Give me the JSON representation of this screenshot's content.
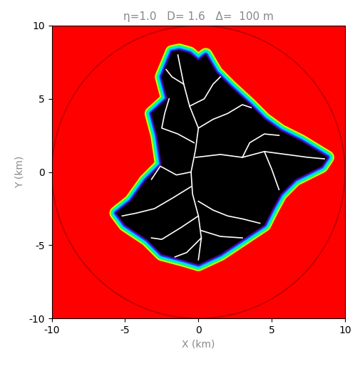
{
  "chart_data": {
    "type": "map",
    "title": "η=1.0   D= 1.6   Δ=  100 m",
    "x_label": "X (km)",
    "y_label": "Y (km)",
    "xlim": [
      -10,
      10
    ],
    "ylim": [
      -10,
      10
    ],
    "xticks": [
      -10,
      -5,
      0,
      5,
      10
    ],
    "yticks": [
      -10,
      -5,
      0,
      5,
      10
    ],
    "background_color": "#ff0000",
    "circle_radius": 10,
    "circle_color": "#b00000",
    "region_color": "#000000",
    "branch_color": "#ffffff",
    "region": [
      [
        -1.3,
        8.3
      ],
      [
        -0.6,
        8.1
      ],
      [
        0.0,
        7.6
      ],
      [
        0.5,
        8.0
      ],
      [
        1.2,
        6.8
      ],
      [
        2.2,
        5.8
      ],
      [
        3.5,
        4.6
      ],
      [
        4.5,
        3.6
      ],
      [
        5.6,
        2.8
      ],
      [
        7.0,
        2.1
      ],
      [
        8.8,
        1.0
      ],
      [
        8.4,
        0.4
      ],
      [
        6.6,
        -0.5
      ],
      [
        5.6,
        -1.5
      ],
      [
        5.0,
        -2.6
      ],
      [
        4.5,
        -3.6
      ],
      [
        3.0,
        -4.6
      ],
      [
        1.5,
        -5.6
      ],
      [
        0.0,
        -6.3
      ],
      [
        -1.0,
        -6.0
      ],
      [
        -2.5,
        -5.6
      ],
      [
        -3.5,
        -4.6
      ],
      [
        -5.0,
        -3.6
      ],
      [
        -5.6,
        -2.8
      ],
      [
        -4.6,
        -2.0
      ],
      [
        -3.6,
        -0.6
      ],
      [
        -2.5,
        0.5
      ],
      [
        -2.8,
        2.5
      ],
      [
        -3.2,
        4.0
      ],
      [
        -2.1,
        5.0
      ],
      [
        -2.5,
        6.5
      ],
      [
        -1.8,
        8.2
      ]
    ],
    "branches": [
      [
        [
          0.0,
          -6.0
        ],
        [
          0.2,
          -4.5
        ],
        [
          0.0,
          -3.0
        ],
        [
          -0.4,
          -1.5
        ],
        [
          -0.5,
          0.0
        ],
        [
          -0.2,
          1.5
        ],
        [
          0.0,
          3.0
        ],
        [
          -0.6,
          4.5
        ],
        [
          -1.0,
          6.0
        ],
        [
          -1.4,
          8.0
        ]
      ],
      [
        [
          -0.2,
          1.0
        ],
        [
          1.5,
          1.2
        ],
        [
          3.0,
          1.0
        ],
        [
          4.5,
          1.4
        ],
        [
          6.0,
          1.2
        ],
        [
          7.5,
          1.0
        ],
        [
          8.6,
          0.9
        ]
      ],
      [
        [
          0.0,
          3.0
        ],
        [
          1.0,
          3.6
        ],
        [
          2.0,
          4.0
        ],
        [
          3.0,
          4.6
        ],
        [
          3.6,
          4.4
        ]
      ],
      [
        [
          -0.5,
          -1.0
        ],
        [
          -1.8,
          -1.8
        ],
        [
          -3.0,
          -2.5
        ],
        [
          -4.2,
          -2.8
        ],
        [
          -5.2,
          -3.0
        ]
      ],
      [
        [
          0.0,
          -2.0
        ],
        [
          1.0,
          -2.6
        ],
        [
          2.0,
          -3.0
        ],
        [
          3.0,
          -3.2
        ],
        [
          4.2,
          -3.5
        ]
      ],
      [
        [
          -0.3,
          2.0
        ],
        [
          -1.4,
          2.6
        ],
        [
          -2.5,
          3.0
        ],
        [
          -2.3,
          4.0
        ],
        [
          -2.0,
          5.0
        ]
      ],
      [
        [
          0.2,
          -4.0
        ],
        [
          1.5,
          -4.4
        ],
        [
          3.0,
          -4.5
        ]
      ],
      [
        [
          -0.6,
          4.5
        ],
        [
          0.4,
          5.0
        ],
        [
          1.0,
          6.0
        ],
        [
          1.5,
          6.5
        ]
      ],
      [
        [
          0.0,
          -3.0
        ],
        [
          -1.2,
          -3.8
        ],
        [
          -2.5,
          -4.6
        ],
        [
          -3.2,
          -4.5
        ]
      ],
      [
        [
          3.0,
          1.0
        ],
        [
          3.5,
          2.0
        ],
        [
          4.5,
          2.6
        ],
        [
          5.5,
          2.5
        ]
      ],
      [
        [
          4.5,
          1.4
        ],
        [
          5.0,
          0.2
        ],
        [
          5.5,
          -1.2
        ]
      ],
      [
        [
          -0.5,
          0.0
        ],
        [
          -1.5,
          -0.2
        ],
        [
          -2.6,
          0.4
        ],
        [
          -3.2,
          -0.5
        ]
      ],
      [
        [
          -1.0,
          6.0
        ],
        [
          -1.8,
          6.5
        ],
        [
          -2.2,
          7.0
        ]
      ],
      [
        [
          0.2,
          -4.5
        ],
        [
          -0.8,
          -5.5
        ],
        [
          -1.6,
          -5.8
        ]
      ]
    ]
  }
}
